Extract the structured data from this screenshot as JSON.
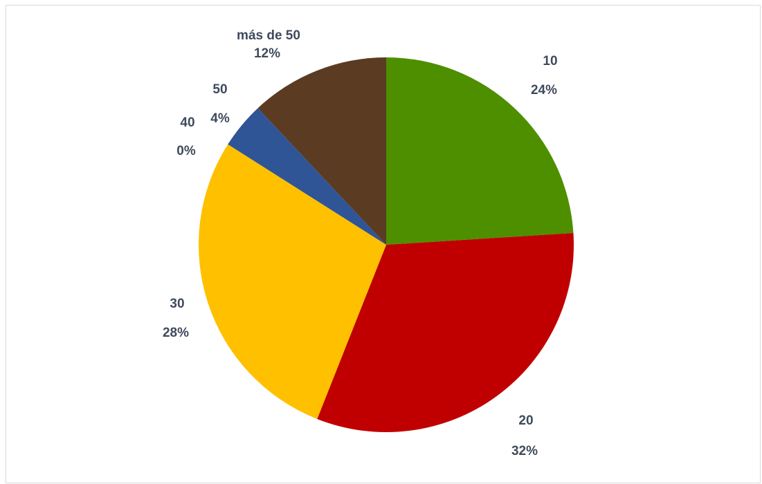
{
  "chart_data": {
    "type": "pie",
    "slices": [
      {
        "category": "10",
        "percent_label": "24%",
        "value": 24,
        "color": "#4e8f00"
      },
      {
        "category": "20",
        "percent_label": "32%",
        "value": 32,
        "color": "#c00000"
      },
      {
        "category": "30",
        "percent_label": "28%",
        "value": 28,
        "color": "#ffc000"
      },
      {
        "category": "40",
        "percent_label": "0%",
        "value": 0,
        "color": "#7f7f7f"
      },
      {
        "category": "50",
        "percent_label": "4%",
        "value": 4,
        "color": "#2f5597"
      },
      {
        "category": "más de 50",
        "percent_label": "12%",
        "value": 12,
        "color": "#5b3b22"
      }
    ],
    "start_angle_deg": 0,
    "direction": "clockwise",
    "legend": "none",
    "data_labels": "category-and-percent"
  }
}
